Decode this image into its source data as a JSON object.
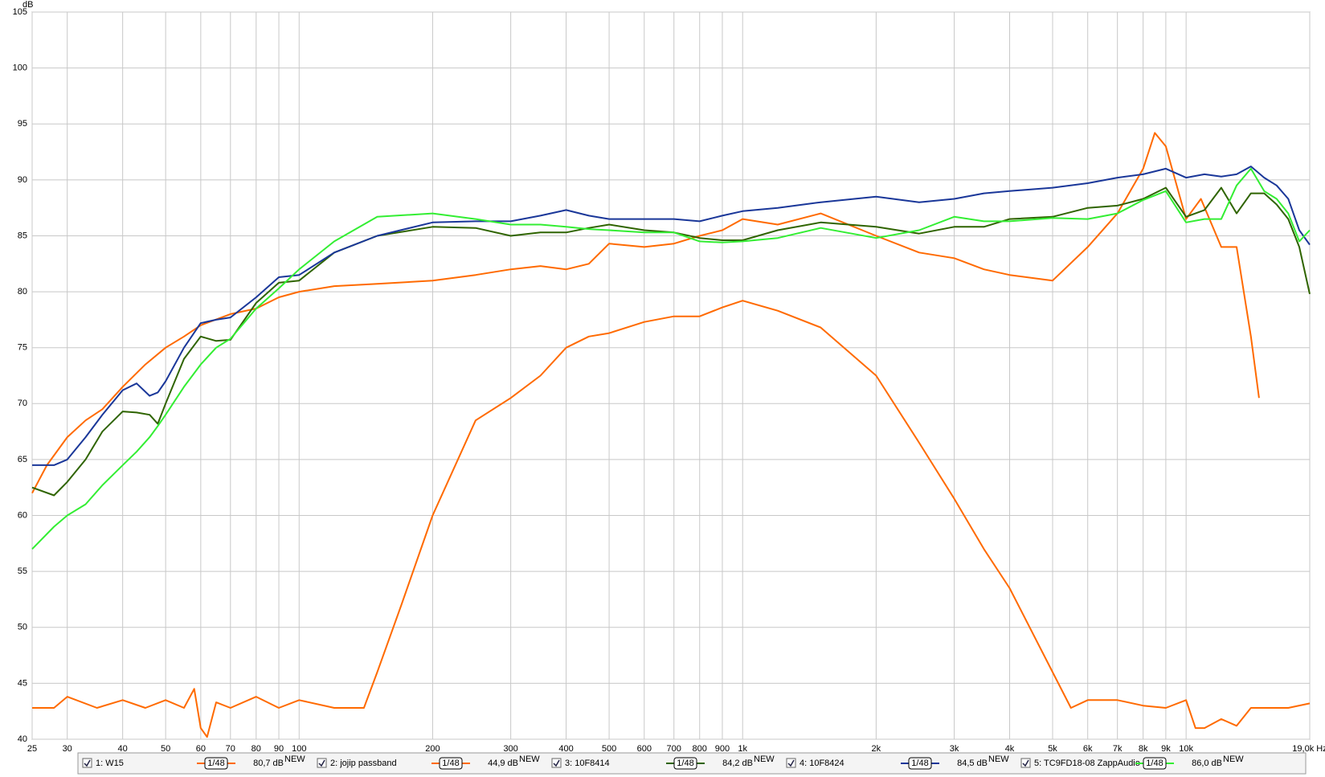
{
  "chart_data": {
    "type": "line",
    "y_label": "dB",
    "log_x": true,
    "grid": true,
    "xlim": [
      25,
      19000
    ],
    "ylim": [
      40,
      105
    ],
    "yticks": [
      40,
      45,
      50,
      55,
      60,
      65,
      70,
      75,
      80,
      85,
      90,
      95,
      100,
      105
    ],
    "xticks": [
      25,
      30,
      40,
      50,
      60,
      70,
      80,
      90,
      100,
      200,
      300,
      400,
      500,
      600,
      700,
      800,
      900,
      {
        "value": 1000,
        "label": "1k"
      },
      {
        "value": 2000,
        "label": "2k"
      },
      {
        "value": 3000,
        "label": "3k"
      },
      {
        "value": 4000,
        "label": "4k"
      },
      {
        "value": 5000,
        "label": "5k"
      },
      {
        "value": 6000,
        "label": "6k"
      },
      {
        "value": 7000,
        "label": "7k"
      },
      {
        "value": 8000,
        "label": "8k"
      },
      {
        "value": 9000,
        "label": "9k"
      },
      {
        "value": 10000,
        "label": "10k"
      },
      {
        "value": 19000,
        "label": "19,0k Hz"
      }
    ],
    "series": [
      {
        "name": "1: W15",
        "color": "#ff6a00",
        "smoothing": "1/48",
        "level": "80,7 dB",
        "level_tag": "NEW",
        "x": [
          25,
          27,
          30,
          33,
          36,
          40,
          45,
          50,
          55,
          60,
          70,
          80,
          90,
          100,
          120,
          150,
          200,
          250,
          300,
          350,
          400,
          450,
          500,
          600,
          700,
          800,
          900,
          1000,
          1200,
          1500,
          2000,
          2500,
          3000,
          3500,
          4000,
          5000,
          6000,
          7000,
          8000,
          8500,
          9000,
          10000,
          10800,
          12000,
          13000,
          14000,
          14600
        ],
        "values": [
          62,
          64.5,
          67,
          68.5,
          69.5,
          71.5,
          73.5,
          75,
          76,
          77,
          78,
          78.5,
          79.5,
          80,
          80.5,
          80.7,
          81,
          81.5,
          82,
          82.3,
          82,
          82.5,
          84.3,
          84,
          84.3,
          85,
          85.5,
          86.5,
          86,
          87,
          85,
          83.5,
          83,
          82,
          81.5,
          81,
          84,
          87,
          91,
          94.2,
          93,
          86.5,
          88.3,
          84,
          84,
          76,
          70.5
        ]
      },
      {
        "name": "2: jojip passband",
        "color": "#ff6a00",
        "smoothing": "1/48",
        "level": "44,9 dB",
        "level_tag": "NEW",
        "x": [
          25,
          28,
          30,
          35,
          40,
          45,
          50,
          55,
          58,
          60,
          62,
          65,
          70,
          80,
          90,
          100,
          120,
          140,
          150,
          170,
          200,
          250,
          300,
          350,
          400,
          450,
          500,
          600,
          700,
          800,
          900,
          1000,
          1200,
          1500,
          2000,
          2500,
          3000,
          3500,
          4000,
          5000,
          5500,
          6000,
          7000,
          8000,
          9000,
          10000,
          10500,
          11000,
          12000,
          13000,
          14000,
          15000,
          17000,
          19000
        ],
        "values": [
          42.8,
          42.8,
          43.8,
          42.8,
          43.5,
          42.8,
          43.5,
          42.8,
          44.5,
          41,
          40.2,
          43.3,
          42.8,
          43.8,
          42.8,
          43.5,
          42.8,
          42.8,
          46,
          52,
          60,
          68.5,
          70.5,
          72.5,
          75,
          76,
          76.3,
          77.3,
          77.8,
          77.8,
          78.6,
          79.2,
          78.3,
          76.8,
          72.5,
          66.5,
          61.5,
          57,
          53.5,
          46,
          42.8,
          43.5,
          43.5,
          43,
          42.8,
          43.5,
          41,
          41,
          41.8,
          41.2,
          42.8,
          42.8,
          42.8,
          43.2
        ]
      },
      {
        "name": "3: 10F8414",
        "color": "#2f6400",
        "smoothing": "1/48",
        "level": "84,2 dB",
        "level_tag": "NEW",
        "x": [
          25,
          28,
          30,
          33,
          36,
          40,
          43,
          46,
          48,
          50,
          55,
          60,
          65,
          70,
          80,
          90,
          100,
          120,
          150,
          200,
          250,
          300,
          350,
          400,
          450,
          500,
          600,
          700,
          800,
          900,
          1000,
          1200,
          1500,
          2000,
          2500,
          3000,
          3500,
          4000,
          5000,
          6000,
          7000,
          8000,
          9000,
          10000,
          11000,
          12000,
          13000,
          14000,
          15000,
          16000,
          17000,
          18000,
          19000
        ],
        "values": [
          62.5,
          61.8,
          63,
          65,
          67.5,
          69.3,
          69.2,
          69,
          68.2,
          70,
          74,
          76,
          75.6,
          75.7,
          79,
          80.8,
          81,
          83.5,
          85,
          85.8,
          85.7,
          85,
          85.3,
          85.3,
          85.7,
          86,
          85.5,
          85.3,
          84.8,
          84.6,
          84.6,
          85.5,
          86.2,
          85.8,
          85.2,
          85.8,
          85.8,
          86.5,
          86.7,
          87.5,
          87.7,
          88.3,
          89.3,
          86.7,
          87.3,
          89.3,
          87,
          88.8,
          88.8,
          87.8,
          86.5,
          84,
          79.8
        ]
      },
      {
        "name": "4: 10F8424",
        "color": "#1a3799",
        "smoothing": "1/48",
        "level": "84,5 dB",
        "level_tag": "NEW",
        "x": [
          25,
          28,
          30,
          33,
          36,
          40,
          43,
          46,
          48,
          50,
          55,
          60,
          65,
          70,
          80,
          90,
          100,
          120,
          150,
          200,
          250,
          300,
          350,
          400,
          450,
          500,
          600,
          700,
          800,
          900,
          1000,
          1200,
          1500,
          2000,
          2500,
          3000,
          3500,
          4000,
          5000,
          6000,
          7000,
          8000,
          9000,
          10000,
          11000,
          12000,
          13000,
          14000,
          15000,
          16000,
          17000,
          18000,
          19000
        ],
        "values": [
          64.5,
          64.5,
          65,
          67,
          69,
          71.2,
          71.8,
          70.7,
          71,
          72,
          75,
          77.2,
          77.5,
          77.7,
          79.5,
          81.3,
          81.5,
          83.5,
          85,
          86.2,
          86.3,
          86.3,
          86.8,
          87.3,
          86.8,
          86.5,
          86.5,
          86.5,
          86.3,
          86.8,
          87.2,
          87.5,
          88,
          88.5,
          88,
          88.3,
          88.8,
          89,
          89.3,
          89.7,
          90.2,
          90.5,
          91,
          90.2,
          90.5,
          90.3,
          90.5,
          91.2,
          90.2,
          89.5,
          88.3,
          85.5,
          84.2
        ]
      },
      {
        "name": "5: TC9FD18-08 ZappAudio",
        "color": "#33ee33",
        "smoothing": "1/48",
        "level": "86,0 dB",
        "level_tag": "NEW",
        "x": [
          25,
          28,
          30,
          33,
          36,
          40,
          43,
          46,
          48,
          50,
          55,
          60,
          65,
          70,
          80,
          90,
          100,
          120,
          150,
          200,
          250,
          300,
          350,
          400,
          450,
          500,
          600,
          700,
          800,
          900,
          1000,
          1200,
          1500,
          2000,
          2500,
          3000,
          3500,
          4000,
          5000,
          6000,
          7000,
          8000,
          9000,
          10000,
          11000,
          12000,
          13000,
          14000,
          15000,
          16000,
          17000,
          18000,
          19000
        ],
        "values": [
          57,
          59,
          60,
          61,
          62.7,
          64.5,
          65.7,
          67,
          68,
          69,
          71.5,
          73.5,
          75,
          75.8,
          78.5,
          80.3,
          82,
          84.5,
          86.7,
          87,
          86.5,
          86,
          86,
          85.8,
          85.6,
          85.5,
          85.3,
          85.3,
          84.5,
          84.4,
          84.5,
          84.8,
          85.7,
          84.8,
          85.5,
          86.7,
          86.3,
          86.3,
          86.6,
          86.5,
          87,
          88.2,
          89,
          86.2,
          86.5,
          86.5,
          89.5,
          91,
          89,
          88.3,
          87,
          84.5,
          85.5
        ]
      }
    ]
  }
}
